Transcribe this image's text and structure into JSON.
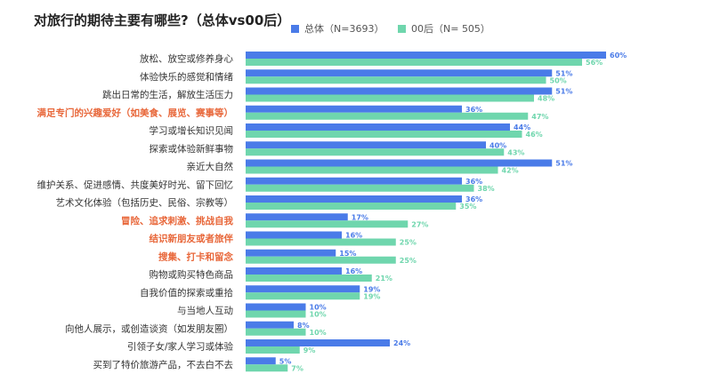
{
  "chart_data": {
    "type": "bar",
    "orientation": "horizontal",
    "title": "对旅行的期待主要有哪些?（总体vs00后）",
    "xlim": [
      0,
      100
    ],
    "value_suffix": "%",
    "colors": {
      "total": "#4a7be8",
      "gen00": "#6fd6ad",
      "highlight_label": "#e8673a",
      "label": "#333333"
    },
    "categories": [
      "放松、放空或修养身心",
      "体验快乐的感觉和情绪",
      "跳出日常的生活，解放生活压力",
      "满足专门的兴趣爱好（如美食、展览、赛事等）",
      "学习或增长知识见闻",
      "探索或体验新鲜事物",
      "亲近大自然",
      "维护关系、促进感情、共度美好时光、留下回忆",
      "艺术文化体验（包括历史、民俗、宗教等）",
      "冒险、追求刺激、挑战自我",
      "结识新朋友或者旅伴",
      "搜集、打卡和留念",
      "购物或购买特色商品",
      "自我价值的探索或重拾",
      "与当地人互动",
      "向他人展示，或创造谈资（如发朋友圈）",
      "引领子女/家人学习或体验",
      "买到了特价旅游产品，不去白不去"
    ],
    "highlighted": [
      false,
      false,
      false,
      true,
      false,
      false,
      false,
      false,
      false,
      true,
      true,
      true,
      false,
      false,
      false,
      false,
      false,
      false
    ],
    "series": [
      {
        "name": "总体（N=3693）",
        "key": "total",
        "values": [
          60,
          51,
          51,
          36,
          44,
          40,
          51,
          36,
          36,
          17,
          16,
          15,
          16,
          19,
          10,
          8,
          24,
          5
        ]
      },
      {
        "name": "00后（N= 505）",
        "key": "gen00",
        "values": [
          56,
          50,
          48,
          47,
          46,
          43,
          42,
          38,
          35,
          27,
          25,
          25,
          21,
          19,
          10,
          10,
          9,
          7
        ]
      }
    ]
  }
}
